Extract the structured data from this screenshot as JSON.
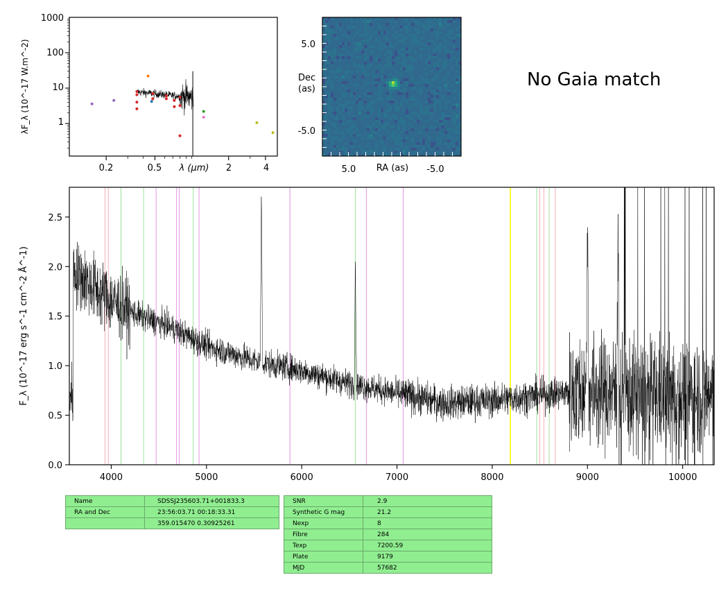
{
  "sed": {
    "ylabel": "λF_λ (10^-17 W.m^-2)",
    "xlabel": "λ (μm)",
    "ytick_labels": [
      "1000",
      "100",
      "10",
      "1"
    ],
    "xtick_labels": [
      "0.2",
      "0.5",
      "2",
      "4"
    ]
  },
  "image": {
    "xlabel": "RA (as)",
    "ylabel": "Dec (as)",
    "xtick_labels": [
      "5.0",
      "-5.0"
    ],
    "ytick_labels": [
      "5.0",
      "-5.0"
    ]
  },
  "gaia_text": "No Gaia match",
  "chart_data": [
    {
      "type": "scatter",
      "panel": "sed",
      "xscale": "log",
      "yscale": "log",
      "xlim": [
        0.1,
        5.0
      ],
      "ylim": [
        0.12,
        1000
      ],
      "x_ticks": [
        0.2,
        0.5,
        2,
        4
      ],
      "y_ticks": [
        1000,
        100,
        10,
        1
      ],
      "photometry": [
        {
          "x": 0.153,
          "y": 3.6,
          "color": "#9467bd"
        },
        {
          "x": 0.231,
          "y": 4.5,
          "color": "#9467bd"
        },
        {
          "x": 0.356,
          "y": 8.0,
          "color": "#d62728"
        },
        {
          "x": 0.356,
          "y": 6.5,
          "color": "#d62728"
        },
        {
          "x": 0.356,
          "y": 4.0,
          "color": "#d62728"
        },
        {
          "x": 0.356,
          "y": 2.6,
          "color": "#d62728"
        },
        {
          "x": 0.44,
          "y": 22,
          "color": "#ff7f0e"
        },
        {
          "x": 0.47,
          "y": 4.2,
          "color": "#1f77b4"
        },
        {
          "x": 0.48,
          "y": 7.0,
          "color": "#d62728"
        },
        {
          "x": 0.48,
          "y": 5.0,
          "color": "#d62728"
        },
        {
          "x": 0.62,
          "y": 6.0,
          "color": "#d62728"
        },
        {
          "x": 0.62,
          "y": 5.0,
          "color": "#d62728"
        },
        {
          "x": 0.72,
          "y": 4.5,
          "color": "#d62728"
        },
        {
          "x": 0.72,
          "y": 3.0,
          "color": "#d62728"
        },
        {
          "x": 0.8,
          "y": 5.5,
          "color": "#d62728"
        },
        {
          "x": 0.8,
          "y": 3.2,
          "color": "#d62728"
        },
        {
          "x": 0.8,
          "y": 0.45,
          "color": "#d62728"
        },
        {
          "x": 1.25,
          "y": 2.2,
          "color": "#2ca02c"
        },
        {
          "x": 1.25,
          "y": 1.5,
          "color": "#e377c2"
        },
        {
          "x": 3.4,
          "y": 1.05,
          "color": "#bcbd22"
        },
        {
          "x": 4.6,
          "y": 0.55,
          "color": "#bcbd22"
        }
      ],
      "spectrum_range_um": [
        0.36,
        1.03
      ]
    },
    {
      "type": "heatmap",
      "panel": "image",
      "xlim": [
        8,
        -8
      ],
      "ylim": [
        -8,
        8
      ],
      "source_position": [
        0.0,
        0.5
      ],
      "colormap": "viridis"
    },
    {
      "type": "line",
      "panel": "spectrum",
      "xlim": [
        3560,
        10330
      ],
      "ylim": [
        0.0,
        2.8
      ],
      "x_ticks": [
        4000,
        5000,
        6000,
        7000,
        8000,
        9000,
        10000
      ],
      "y_ticks": [
        0.0,
        0.5,
        1.0,
        1.5,
        2.0,
        2.5
      ],
      "ylabel": "F_λ (10^-17 erg s^-1 cm^-2 Å^-1)",
      "continuum": [
        {
          "x": 3600,
          "y": 1.95
        },
        {
          "x": 3800,
          "y": 1.8
        },
        {
          "x": 4000,
          "y": 1.65
        },
        {
          "x": 4300,
          "y": 1.5
        },
        {
          "x": 4600,
          "y": 1.4
        },
        {
          "x": 5000,
          "y": 1.2
        },
        {
          "x": 5500,
          "y": 1.05
        },
        {
          "x": 6000,
          "y": 0.95
        },
        {
          "x": 6500,
          "y": 0.82
        },
        {
          "x": 7000,
          "y": 0.72
        },
        {
          "x": 7500,
          "y": 0.62
        },
        {
          "x": 8000,
          "y": 0.65
        },
        {
          "x": 8500,
          "y": 0.7
        },
        {
          "x": 9000,
          "y": 0.75
        },
        {
          "x": 9500,
          "y": 0.7
        },
        {
          "x": 10000,
          "y": 0.7
        },
        {
          "x": 10330,
          "y": 0.7
        }
      ],
      "features": [
        {
          "x": 5577,
          "y": 2.8
        },
        {
          "x": 6563,
          "y": 2.1
        },
        {
          "x": 9000,
          "y": 2.7
        },
        {
          "x": 9320,
          "y": 2.8
        }
      ],
      "pink_lines": [
        3934,
        3969,
        8498,
        8542,
        8662
      ],
      "green_lines": [
        4102,
        4340,
        4861,
        6563,
        8467,
        8598
      ],
      "violet_lines": [
        4471,
        4686,
        4713,
        4922,
        5876,
        6678,
        7065
      ],
      "yellow_line": 8190
    }
  ],
  "table_left": [
    {
      "key": "Name",
      "value": "SDSSJ235603.71+001833.3"
    },
    {
      "key": "RA and Dec",
      "value": "23:56:03.71    00:18:33.31"
    },
    {
      "key": "",
      "value": "359.015470    0.30925261"
    }
  ],
  "table_right": [
    {
      "key": "SNR",
      "value": "2.9"
    },
    {
      "key": "Synthetic G mag",
      "value": "21.2"
    },
    {
      "key": "Nexp",
      "value": "8"
    },
    {
      "key": "Fibre",
      "value": "284"
    },
    {
      "key": "Texp",
      "value": "7200.59"
    },
    {
      "key": "Plate",
      "value": "9179"
    },
    {
      "key": "MJD",
      "value": "57682"
    }
  ]
}
